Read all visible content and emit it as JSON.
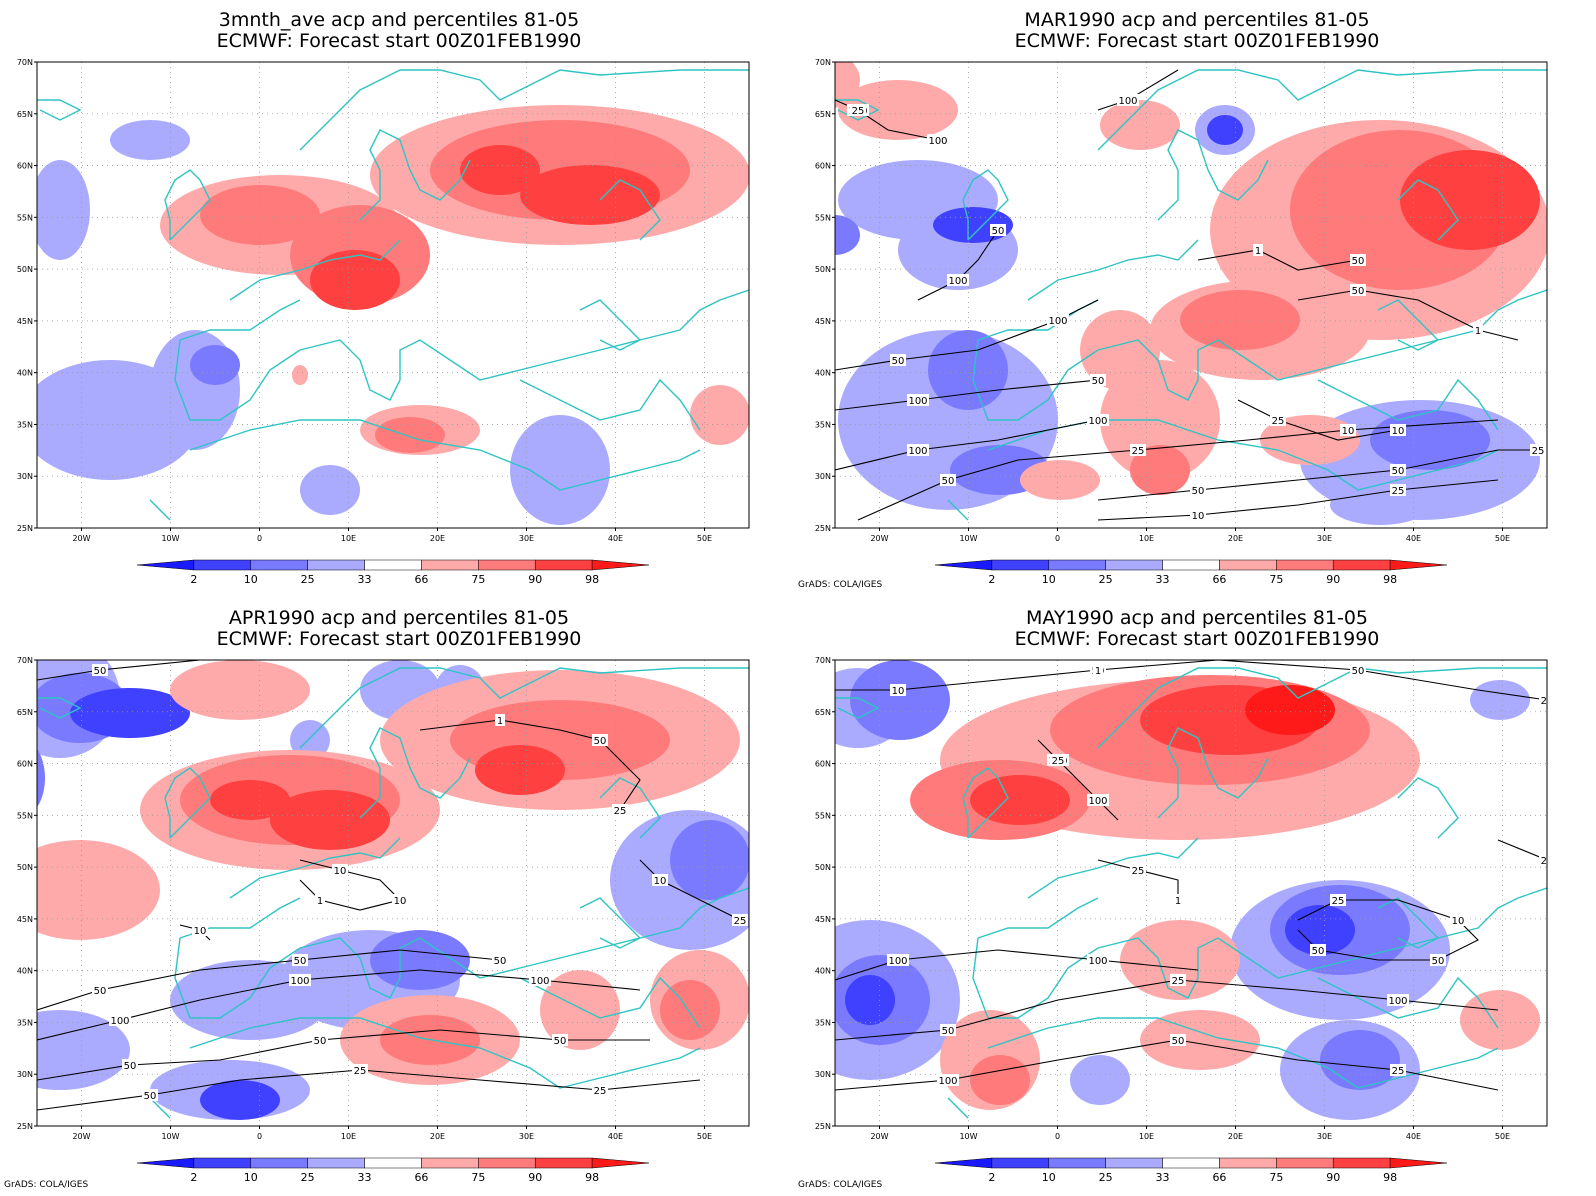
{
  "panels": [
    {
      "title_line1": "3mnth_ave acp and percentiles 81-05",
      "title_line2": "ECMWF: Forecast start 00Z01FEB1990",
      "credit": ""
    },
    {
      "title_line1": "MAR1990 acp and percentiles 81-05",
      "title_line2": "ECMWF: Forecast start 00Z01FEB1990",
      "credit": "GrADS: COLA/IGES"
    },
    {
      "title_line1": "APR1990 acp and percentiles 81-05",
      "title_line2": "ECMWF: Forecast start 00Z01FEB1990",
      "credit": "GrADS: COLA/IGES"
    },
    {
      "title_line1": "MAY1990 acp and percentiles 81-05",
      "title_line2": "ECMWF: Forecast start 00Z01FEB1990",
      "credit": "GrADS: COLA/IGES"
    }
  ],
  "lat_labels": [
    "70N",
    "65N",
    "60N",
    "55N",
    "50N",
    "45N",
    "40N",
    "35N",
    "30N",
    "25N"
  ],
  "lon_labels": [
    "20W",
    "10W",
    "0",
    "10E",
    "20E",
    "30E",
    "40E",
    "50E"
  ],
  "colorbar": {
    "labels": [
      "2",
      "10",
      "25",
      "33",
      "66",
      "75",
      "90",
      "98"
    ],
    "colors": [
      "#1a1aff",
      "#4040ff",
      "#7a7aff",
      "#aaaaff",
      "#ffffff",
      "#ffaaaa",
      "#ff7a7a",
      "#ff4040",
      "#ff1a1a"
    ]
  },
  "colors": {
    "coast": "#2ec4c4",
    "contour": "#000000",
    "grid": "#9a9a9a"
  },
  "map_data": [
    {
      "contours": []
    },
    {
      "contours": [
        "100",
        "100",
        "100",
        "50",
        "100",
        "50",
        "100",
        "100",
        "50",
        "100",
        "100",
        "50",
        "25",
        "10",
        "50",
        "50",
        "25",
        "10",
        "25",
        "50",
        "1",
        "1",
        "50",
        "25",
        "10",
        "25",
        "100",
        "100"
      ]
    },
    {
      "contours": [
        "50",
        "50",
        "50",
        "50",
        "100",
        "100",
        "100",
        "50",
        "50",
        "50",
        "50",
        "25",
        "25",
        "10",
        "10",
        "1",
        "1",
        "50",
        "25",
        "10",
        "25",
        "10",
        "50"
      ]
    },
    {
      "contours": [
        "50",
        "50",
        "50",
        "50",
        "100",
        "100",
        "100",
        "100",
        "50",
        "25",
        "100",
        "100",
        "50",
        "25",
        "25",
        "10",
        "50",
        "50",
        "25",
        "1",
        "25",
        "10",
        "1",
        "50",
        "25",
        "25"
      ]
    }
  ]
}
